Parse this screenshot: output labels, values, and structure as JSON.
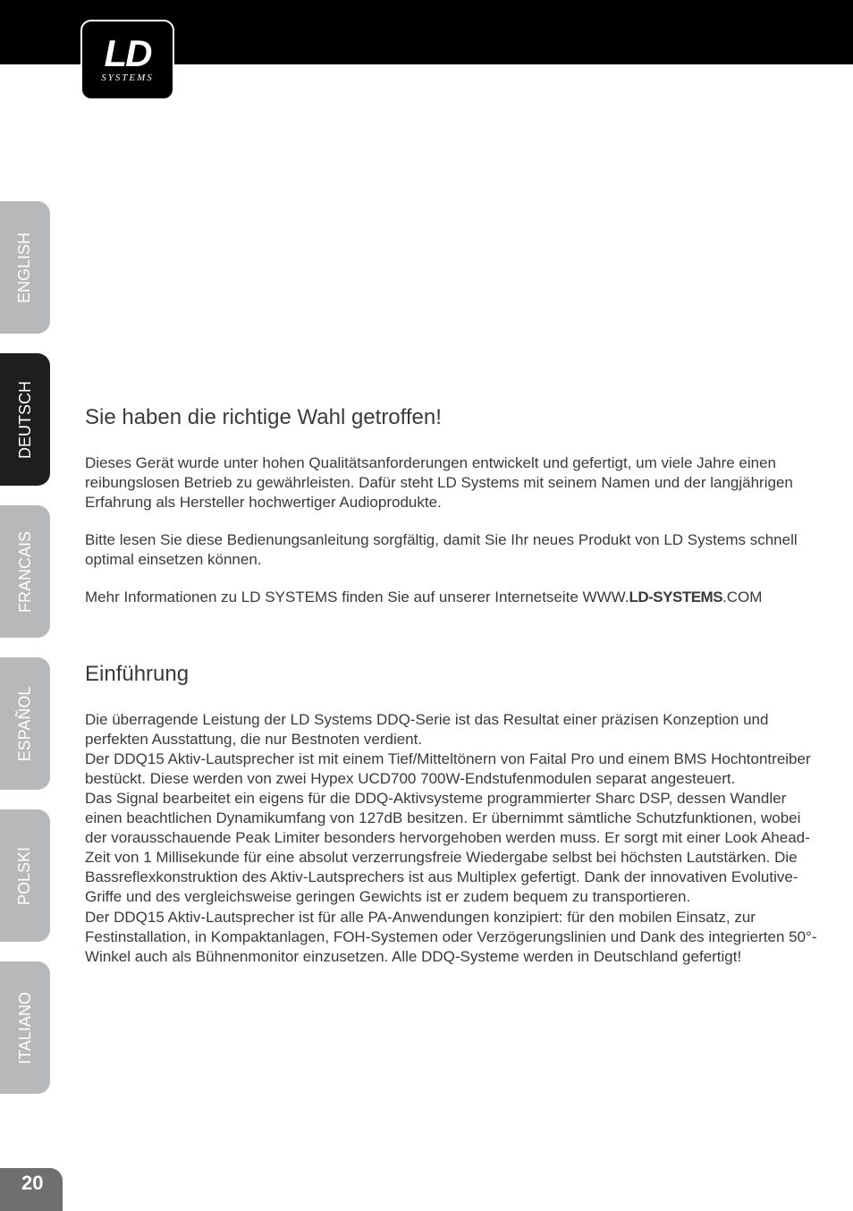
{
  "logo": {
    "main": "LD",
    "sub": "SYSTEMS"
  },
  "tabs": [
    {
      "label": "ENGLISH",
      "active": false
    },
    {
      "label": "DEUTSCH",
      "active": true
    },
    {
      "label": "FRANCAIS",
      "active": false
    },
    {
      "label": "ESPAÑOL",
      "active": false
    },
    {
      "label": "POLSKI",
      "active": false
    },
    {
      "label": "ITALIANO",
      "active": false
    }
  ],
  "section1": {
    "title": "Sie haben die richtige Wahl getroffen!",
    "p1": "Dieses Gerät wurde unter hohen Qualitätsanforderungen entwickelt und gefertigt, um viele Jahre einen reibungslosen Betrieb zu gewährleisten. Dafür steht LD Systems mit seinem Namen und der langjährigen Erfahrung als Hersteller hochwertiger Audioprodukte.",
    "p2": "Bitte lesen Sie diese Bedienungsanleitung sorgfältig, damit Sie Ihr neues Produkt von LD Systems schnell optimal einsetzen können.",
    "p3_pre": "Mehr Informationen zu LD SYSTEMS finden Sie auf unserer Internetseite  WWW.",
    "p3_bold": "LD-SYSTEMS",
    "p3_post": ".COM"
  },
  "section2": {
    "title": "Einführung",
    "p1": "Die überragende Leistung der LD Systems DDQ-Serie ist das Resultat einer präzisen Konzeption und perfekten Ausstattung, die nur Bestnoten verdient.",
    "p2": "Der DDQ15 Aktiv-Lautsprecher ist mit einem Tief/Mitteltönern von Faital Pro und einem BMS Hochtontreiber bestückt. Diese werden von zwei Hypex UCD700 700W-Endstufenmodulen separat angesteuert.",
    "p3": "Das Signal bearbeitet ein eigens für die DDQ-Aktivsysteme programmierter Sharc DSP, dessen Wandler einen beachtlichen Dynamikumfang von 127dB besitzen. Er übernimmt sämtliche Schutzfunktionen, wobei der vorausschauende Peak Limiter besonders hervorgehoben werden muss. Er sorgt mit einer Look Ahead-Zeit von 1 Millisekunde für eine absolut verzerrungsfreie Wiedergabe selbst bei höchsten Lautstärken. Die Bassreflexkonstruktion des Aktiv-Lautsprechers ist aus Multiplex gefertigt. Dank der innovativen Evolutive-Griffe und des vergleichsweise geringen Gewichts ist er zudem bequem zu transportieren.",
    "p4": "Der DDQ15 Aktiv-Lautsprecher ist für alle PA-Anwendungen konzipiert: für den mobilen Einsatz, zur Festinstallation, in Kompaktanlagen, FOH-Systemen oder Verzögerungslinien und Dank des integrierten 50°-Winkel auch als Bühnenmonitor einzusetzen. Alle DDQ-Systeme werden in Deutschland gefertigt!"
  },
  "page_number": "20",
  "colors": {
    "header_bg": "#000000",
    "tab_inactive_bg": "#b7b8b9",
    "tab_active_bg": "#1e1e1e",
    "tab_text": "#ffffff",
    "body_text": "#3a3a3a",
    "footer_tab_bg": "#6f6f70"
  }
}
